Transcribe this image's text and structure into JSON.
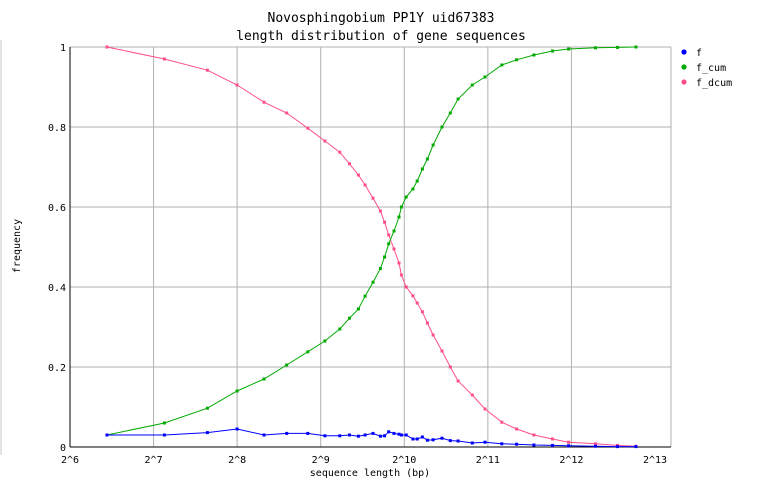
{
  "chart_data": {
    "type": "line",
    "title": "Novosphingobium PP1Y uid67383",
    "subtitle": "length distribution of gene sequences",
    "xlabel": "sequence length (bp)",
    "ylabel": "frequency",
    "x_scale": "log2",
    "xlim": [
      64,
      8192
    ],
    "ylim": [
      0,
      1
    ],
    "x_ticks": [
      64,
      128,
      256,
      512,
      1024,
      2048,
      4096,
      8192
    ],
    "x_tick_labels": [
      "2^6",
      "2^7",
      "2^8",
      "2^9",
      "2^10",
      "2^11",
      "2^12",
      "2^13"
    ],
    "y_ticks": [
      0,
      0.2,
      0.4,
      0.6,
      0.8,
      1
    ],
    "y_tick_labels": [
      "0",
      "0.2",
      "0.4",
      "0.6",
      "0.8",
      "1"
    ],
    "grid": true,
    "legend_position": "top-right",
    "colors": {
      "f": "#0000ff",
      "f_cum": "#00aa00",
      "f_dcum": "#ff4f8a",
      "grid": "#b0b0b0"
    },
    "series": [
      {
        "name": "f",
        "x": [
          87,
          140,
          200,
          256,
          320,
          386,
          460,
          530,
          600,
          650,
          700,
          740,
          790,
          840,
          870,
          900,
          940,
          980,
          1000,
          1040,
          1100,
          1140,
          1190,
          1240,
          1300,
          1400,
          1500,
          1600,
          1800,
          2000,
          2300,
          2600,
          3000,
          3500,
          4000,
          5000,
          6000,
          7000
        ],
        "y": [
          0.03,
          0.03,
          0.036,
          0.045,
          0.03,
          0.034,
          0.034,
          0.028,
          0.028,
          0.03,
          0.027,
          0.03,
          0.034,
          0.027,
          0.028,
          0.038,
          0.034,
          0.032,
          0.03,
          0.03,
          0.02,
          0.02,
          0.025,
          0.017,
          0.018,
          0.022,
          0.016,
          0.015,
          0.01,
          0.012,
          0.008,
          0.007,
          0.005,
          0.004,
          0.003,
          0.002,
          0.001,
          0.001
        ]
      },
      {
        "name": "f_cum",
        "x": [
          87,
          140,
          200,
          256,
          320,
          386,
          460,
          530,
          600,
          650,
          700,
          740,
          790,
          840,
          870,
          900,
          940,
          980,
          1000,
          1040,
          1100,
          1140,
          1190,
          1240,
          1300,
          1400,
          1500,
          1600,
          1800,
          2000,
          2300,
          2600,
          3000,
          3500,
          4000,
          5000,
          6000,
          7000
        ],
        "y": [
          0.03,
          0.06,
          0.097,
          0.14,
          0.17,
          0.205,
          0.238,
          0.265,
          0.295,
          0.322,
          0.345,
          0.377,
          0.412,
          0.446,
          0.475,
          0.508,
          0.54,
          0.575,
          0.6,
          0.625,
          0.645,
          0.665,
          0.695,
          0.72,
          0.755,
          0.8,
          0.835,
          0.87,
          0.905,
          0.925,
          0.955,
          0.968,
          0.98,
          0.99,
          0.995,
          0.998,
          0.999,
          1.0
        ]
      },
      {
        "name": "f_dcum",
        "x": [
          87,
          140,
          200,
          256,
          320,
          386,
          460,
          530,
          600,
          650,
          700,
          740,
          790,
          840,
          870,
          900,
          940,
          980,
          1000,
          1040,
          1100,
          1140,
          1190,
          1240,
          1300,
          1400,
          1500,
          1600,
          1800,
          2000,
          2300,
          2600,
          3000,
          3500,
          4000,
          5000,
          6000,
          7000
        ],
        "y": [
          1.0,
          0.97,
          0.942,
          0.905,
          0.862,
          0.835,
          0.797,
          0.765,
          0.737,
          0.708,
          0.68,
          0.655,
          0.622,
          0.59,
          0.562,
          0.53,
          0.495,
          0.46,
          0.43,
          0.4,
          0.378,
          0.36,
          0.338,
          0.31,
          0.28,
          0.24,
          0.2,
          0.165,
          0.13,
          0.095,
          0.062,
          0.045,
          0.03,
          0.02,
          0.012,
          0.008,
          0.004,
          0.002
        ]
      }
    ]
  }
}
